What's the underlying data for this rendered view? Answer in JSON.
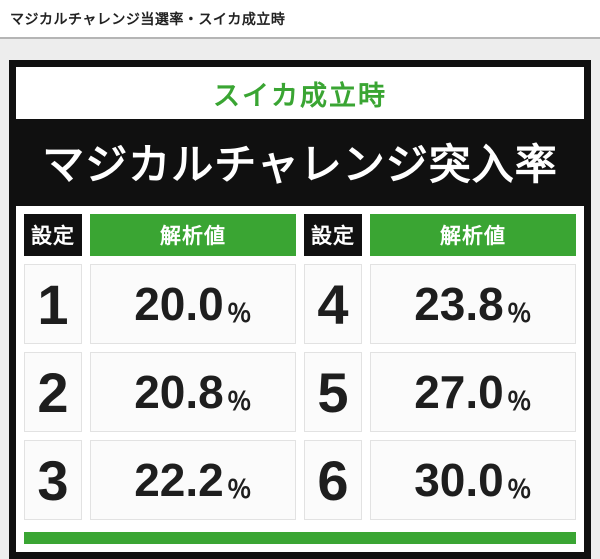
{
  "page": {
    "breadcrumb": "マジカルチャレンジ当選率・スイカ成立時"
  },
  "table": {
    "subtitle": "スイカ成立時",
    "title": "マジカルチャレンジ突入率",
    "col_headers": [
      "設定",
      "解析値",
      "設定",
      "解析値"
    ],
    "percent_sign": "％",
    "rows": [
      {
        "setting_left": "1",
        "value_left": "20.0",
        "setting_right": "4",
        "value_right": "23.8"
      },
      {
        "setting_left": "2",
        "value_left": "20.8",
        "setting_right": "5",
        "value_right": "27.0"
      },
      {
        "setting_left": "3",
        "value_left": "22.2",
        "setting_right": "6",
        "value_right": "30.0"
      }
    ]
  },
  "chart_data": {
    "type": "table",
    "title": "マジカルチャレンジ突入率 (スイカ成立時)",
    "columns": [
      "設定",
      "解析値"
    ],
    "rows_flat": [
      [
        "1",
        "20.0%"
      ],
      [
        "2",
        "20.8%"
      ],
      [
        "3",
        "22.2%"
      ],
      [
        "4",
        "23.8%"
      ],
      [
        "5",
        "27.0%"
      ],
      [
        "6",
        "30.0%"
      ]
    ]
  },
  "colors": {
    "green": "#3aa533",
    "black": "#101010"
  }
}
